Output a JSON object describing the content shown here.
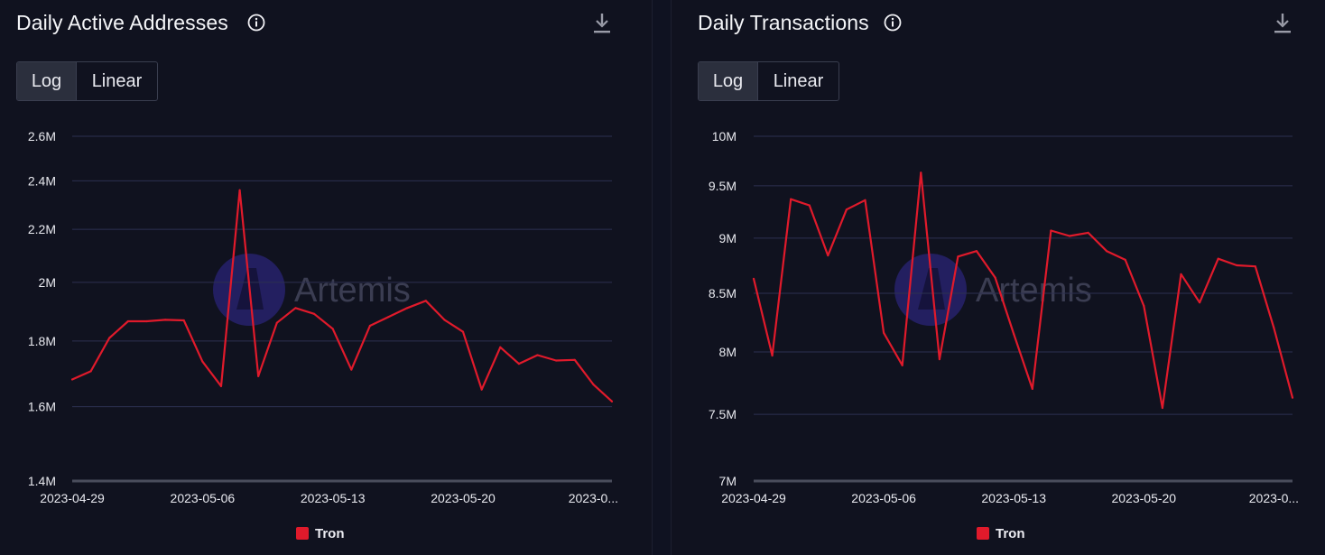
{
  "brand": {
    "watermark": "Artemis",
    "accent": "#e01a2b",
    "grid": "#2c3050",
    "axis": "#4a4d5c"
  },
  "panels": [
    {
      "title": "Daily Active Addresses",
      "toggle": {
        "log": "Log",
        "linear": "Linear",
        "selected": "Log"
      },
      "icons": {
        "info": "info-icon",
        "download": "download-icon"
      },
      "legend": {
        "label": "Tron",
        "color": "#e01a2b"
      }
    },
    {
      "title": "Daily Transactions",
      "toggle": {
        "log": "Log",
        "linear": "Linear",
        "selected": "Log"
      },
      "icons": {
        "info": "info-icon",
        "download": "download-icon"
      },
      "legend": {
        "label": "Tron",
        "color": "#e01a2b"
      }
    }
  ],
  "chart_data": [
    {
      "type": "line",
      "scale": "log",
      "title": "Daily Active Addresses",
      "xlabel": "",
      "ylabel": "",
      "ylim": [
        1400000,
        2600000
      ],
      "y_ticks": [
        1400000,
        1600000,
        1800000,
        2000000,
        2200000,
        2400000,
        2600000
      ],
      "y_tick_labels": [
        "1.4M",
        "1.6M",
        "1.8M",
        "2M",
        "2.2M",
        "2.4M",
        "2.6M"
      ],
      "x_tick_labels": [
        "2023-04-29",
        "2023-05-06",
        "2023-05-13",
        "2023-05-20",
        "2023-0..."
      ],
      "x_tick_dates": [
        "2023-04-29",
        "2023-05-06",
        "2023-05-13",
        "2023-05-20",
        "2023-05-27"
      ],
      "grid": true,
      "legend": "bottom-center",
      "series": [
        {
          "name": "Tron",
          "color": "#e01a2b",
          "x": [
            "2023-04-29",
            "2023-04-30",
            "2023-05-01",
            "2023-05-02",
            "2023-05-03",
            "2023-05-04",
            "2023-05-05",
            "2023-05-06",
            "2023-05-07",
            "2023-05-08",
            "2023-05-09",
            "2023-05-10",
            "2023-05-11",
            "2023-05-12",
            "2023-05-13",
            "2023-05-14",
            "2023-05-15",
            "2023-05-16",
            "2023-05-17",
            "2023-05-18",
            "2023-05-19",
            "2023-05-20",
            "2023-05-21",
            "2023-05-22",
            "2023-05-23",
            "2023-05-24",
            "2023-05-25",
            "2023-05-26",
            "2023-05-27",
            "2023-05-28"
          ],
          "values": [
            1680000,
            1705000,
            1810000,
            1865000,
            1865000,
            1870000,
            1868000,
            1735000,
            1660000,
            2360000,
            1690000,
            1860000,
            1910000,
            1890000,
            1840000,
            1710000,
            1850000,
            1880000,
            1910000,
            1935000,
            1870000,
            1830000,
            1650000,
            1780000,
            1728000,
            1755000,
            1738000,
            1740000,
            1665000,
            1615000
          ]
        }
      ]
    },
    {
      "type": "line",
      "scale": "log",
      "title": "Daily Transactions",
      "xlabel": "",
      "ylabel": "",
      "ylim": [
        7000000,
        10000000
      ],
      "y_ticks": [
        7000000,
        7500000,
        8000000,
        8500000,
        9000000,
        9500000,
        10000000
      ],
      "y_tick_labels": [
        "7M",
        "7.5M",
        "8M",
        "8.5M",
        "9M",
        "9.5M",
        "10M"
      ],
      "x_tick_labels": [
        "2023-04-29",
        "2023-05-06",
        "2023-05-13",
        "2023-05-20",
        "2023-0..."
      ],
      "x_tick_dates": [
        "2023-04-29",
        "2023-05-06",
        "2023-05-13",
        "2023-05-20",
        "2023-05-27"
      ],
      "grid": true,
      "legend": "bottom-center",
      "series": [
        {
          "name": "Tron",
          "color": "#e01a2b",
          "x": [
            "2023-04-29",
            "2023-04-30",
            "2023-05-01",
            "2023-05-02",
            "2023-05-03",
            "2023-05-04",
            "2023-05-05",
            "2023-05-06",
            "2023-05-07",
            "2023-05-08",
            "2023-05-09",
            "2023-05-10",
            "2023-05-11",
            "2023-05-12",
            "2023-05-13",
            "2023-05-14",
            "2023-05-15",
            "2023-05-16",
            "2023-05-17",
            "2023-05-18",
            "2023-05-19",
            "2023-05-20",
            "2023-05-21",
            "2023-05-22",
            "2023-05-23",
            "2023-05-24",
            "2023-05-25",
            "2023-05-26",
            "2023-05-27",
            "2023-05-28"
          ],
          "values": [
            8630000,
            7970000,
            9370000,
            9310000,
            8840000,
            9270000,
            9360000,
            8160000,
            7890000,
            9630000,
            7940000,
            8830000,
            8880000,
            8640000,
            8150000,
            7700000,
            9070000,
            9020000,
            9050000,
            8880000,
            8800000,
            8390000,
            7550000,
            8670000,
            8420000,
            8810000,
            8750000,
            8740000,
            8200000,
            7630000
          ]
        }
      ]
    }
  ]
}
